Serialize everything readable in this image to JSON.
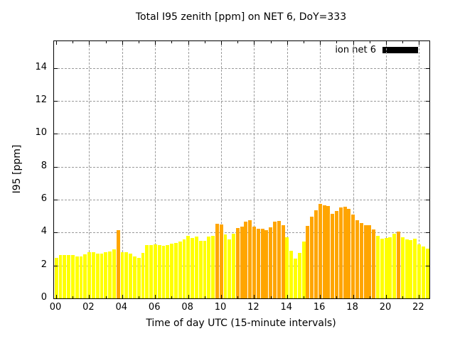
{
  "chart_data": {
    "type": "bar",
    "title": "Total I95 zenith [ppm] on NET 6, DoY=333",
    "xlabel": "Time of day UTC (15-minute intervals)",
    "ylabel": "I95 [ppm]",
    "legend": {
      "label": "ion net 6",
      "swatch_color": "#000000",
      "position": "top-right-inside"
    },
    "grid": true,
    "x_tick_labels": [
      "00",
      "02",
      "04",
      "06",
      "08",
      "10",
      "12",
      "14",
      "16",
      "18",
      "20",
      "22"
    ],
    "x_tick_hours": [
      0,
      2,
      4,
      6,
      8,
      10,
      12,
      14,
      16,
      18,
      20,
      22
    ],
    "x_minor_tick_hours": [
      1,
      3,
      5,
      7,
      9,
      11,
      13,
      15,
      17,
      19,
      21
    ],
    "y_ticks": [
      0,
      2,
      4,
      6,
      8,
      10,
      12,
      14
    ],
    "xlim_hours": [
      -0.13,
      22.63
    ],
    "ylim": [
      0,
      15.63
    ],
    "bar_width_hours": 0.25,
    "palette": {
      "y": "#ffff00",
      "o": "#ffa500"
    },
    "bars": [
      [
        "00:00",
        2.47,
        "y"
      ],
      [
        "00:15",
        2.63,
        "y"
      ],
      [
        "00:30",
        2.65,
        "y"
      ],
      [
        "00:45",
        2.62,
        "y"
      ],
      [
        "01:00",
        2.65,
        "y"
      ],
      [
        "01:15",
        2.55,
        "y"
      ],
      [
        "01:30",
        2.56,
        "y"
      ],
      [
        "01:45",
        2.68,
        "y"
      ],
      [
        "02:00",
        2.8,
        "y"
      ],
      [
        "02:15",
        2.8,
        "y"
      ],
      [
        "02:30",
        2.72,
        "y"
      ],
      [
        "02:45",
        2.7,
        "y"
      ],
      [
        "03:00",
        2.8,
        "y"
      ],
      [
        "03:15",
        2.85,
        "y"
      ],
      [
        "03:30",
        3.0,
        "y"
      ],
      [
        "03:45",
        4.15,
        "o"
      ],
      [
        "04:00",
        2.8,
        "y"
      ],
      [
        "04:15",
        2.8,
        "y"
      ],
      [
        "04:30",
        2.7,
        "y"
      ],
      [
        "04:45",
        2.55,
        "y"
      ],
      [
        "05:00",
        2.45,
        "y"
      ],
      [
        "05:15",
        2.75,
        "y"
      ],
      [
        "05:30",
        3.24,
        "y"
      ],
      [
        "05:45",
        3.24,
        "y"
      ],
      [
        "06:00",
        3.3,
        "y"
      ],
      [
        "06:15",
        3.24,
        "y"
      ],
      [
        "06:30",
        3.18,
        "y"
      ],
      [
        "06:45",
        3.24,
        "y"
      ],
      [
        "07:00",
        3.33,
        "y"
      ],
      [
        "07:15",
        3.36,
        "y"
      ],
      [
        "07:30",
        3.47,
        "y"
      ],
      [
        "07:45",
        3.57,
        "y"
      ],
      [
        "08:00",
        3.82,
        "y"
      ],
      [
        "08:15",
        3.67,
        "y"
      ],
      [
        "08:30",
        3.74,
        "y"
      ],
      [
        "08:45",
        3.51,
        "y"
      ],
      [
        "09:00",
        3.51,
        "y"
      ],
      [
        "09:15",
        3.74,
        "y"
      ],
      [
        "09:30",
        3.8,
        "y"
      ],
      [
        "09:45",
        4.55,
        "o"
      ],
      [
        "10:00",
        4.48,
        "o"
      ],
      [
        "10:15",
        3.9,
        "y"
      ],
      [
        "10:30",
        3.59,
        "y"
      ],
      [
        "10:45",
        3.92,
        "y"
      ],
      [
        "11:00",
        4.26,
        "o"
      ],
      [
        "11:15",
        4.35,
        "o"
      ],
      [
        "11:30",
        4.65,
        "o"
      ],
      [
        "11:45",
        4.73,
        "o"
      ],
      [
        "12:00",
        4.35,
        "o"
      ],
      [
        "12:15",
        4.25,
        "o"
      ],
      [
        "12:30",
        4.25,
        "o"
      ],
      [
        "12:45",
        4.15,
        "o"
      ],
      [
        "13:00",
        4.33,
        "o"
      ],
      [
        "13:15",
        4.67,
        "o"
      ],
      [
        "13:30",
        4.72,
        "o"
      ],
      [
        "13:45",
        4.45,
        "o"
      ],
      [
        "14:00",
        3.72,
        "y"
      ],
      [
        "14:15",
        2.88,
        "y"
      ],
      [
        "14:30",
        2.42,
        "y"
      ],
      [
        "14:45",
        2.75,
        "y"
      ],
      [
        "15:00",
        3.47,
        "y"
      ],
      [
        "15:15",
        4.41,
        "o"
      ],
      [
        "15:30",
        4.98,
        "o"
      ],
      [
        "15:45",
        5.37,
        "o"
      ],
      [
        "16:00",
        5.73,
        "o"
      ],
      [
        "16:15",
        5.67,
        "o"
      ],
      [
        "16:30",
        5.6,
        "o"
      ],
      [
        "16:45",
        5.15,
        "o"
      ],
      [
        "17:00",
        5.3,
        "o"
      ],
      [
        "17:15",
        5.53,
        "o"
      ],
      [
        "17:30",
        5.56,
        "o"
      ],
      [
        "17:45",
        5.45,
        "o"
      ],
      [
        "18:00",
        5.08,
        "o"
      ],
      [
        "18:15",
        4.76,
        "o"
      ],
      [
        "18:30",
        4.58,
        "o"
      ],
      [
        "18:45",
        4.46,
        "o"
      ],
      [
        "19:00",
        4.43,
        "o"
      ],
      [
        "19:15",
        4.17,
        "o"
      ],
      [
        "19:30",
        3.8,
        "y"
      ],
      [
        "19:45",
        3.62,
        "y"
      ],
      [
        "20:00",
        3.66,
        "y"
      ],
      [
        "20:15",
        3.71,
        "y"
      ],
      [
        "20:30",
        3.95,
        "y"
      ],
      [
        "20:45",
        4.05,
        "o"
      ],
      [
        "21:00",
        3.7,
        "y"
      ],
      [
        "21:15",
        3.58,
        "y"
      ],
      [
        "21:30",
        3.53,
        "y"
      ],
      [
        "21:45",
        3.62,
        "y"
      ],
      [
        "22:00",
        3.3,
        "y"
      ],
      [
        "22:15",
        3.14,
        "y"
      ],
      [
        "22:30",
        3.04,
        "y"
      ]
    ]
  }
}
